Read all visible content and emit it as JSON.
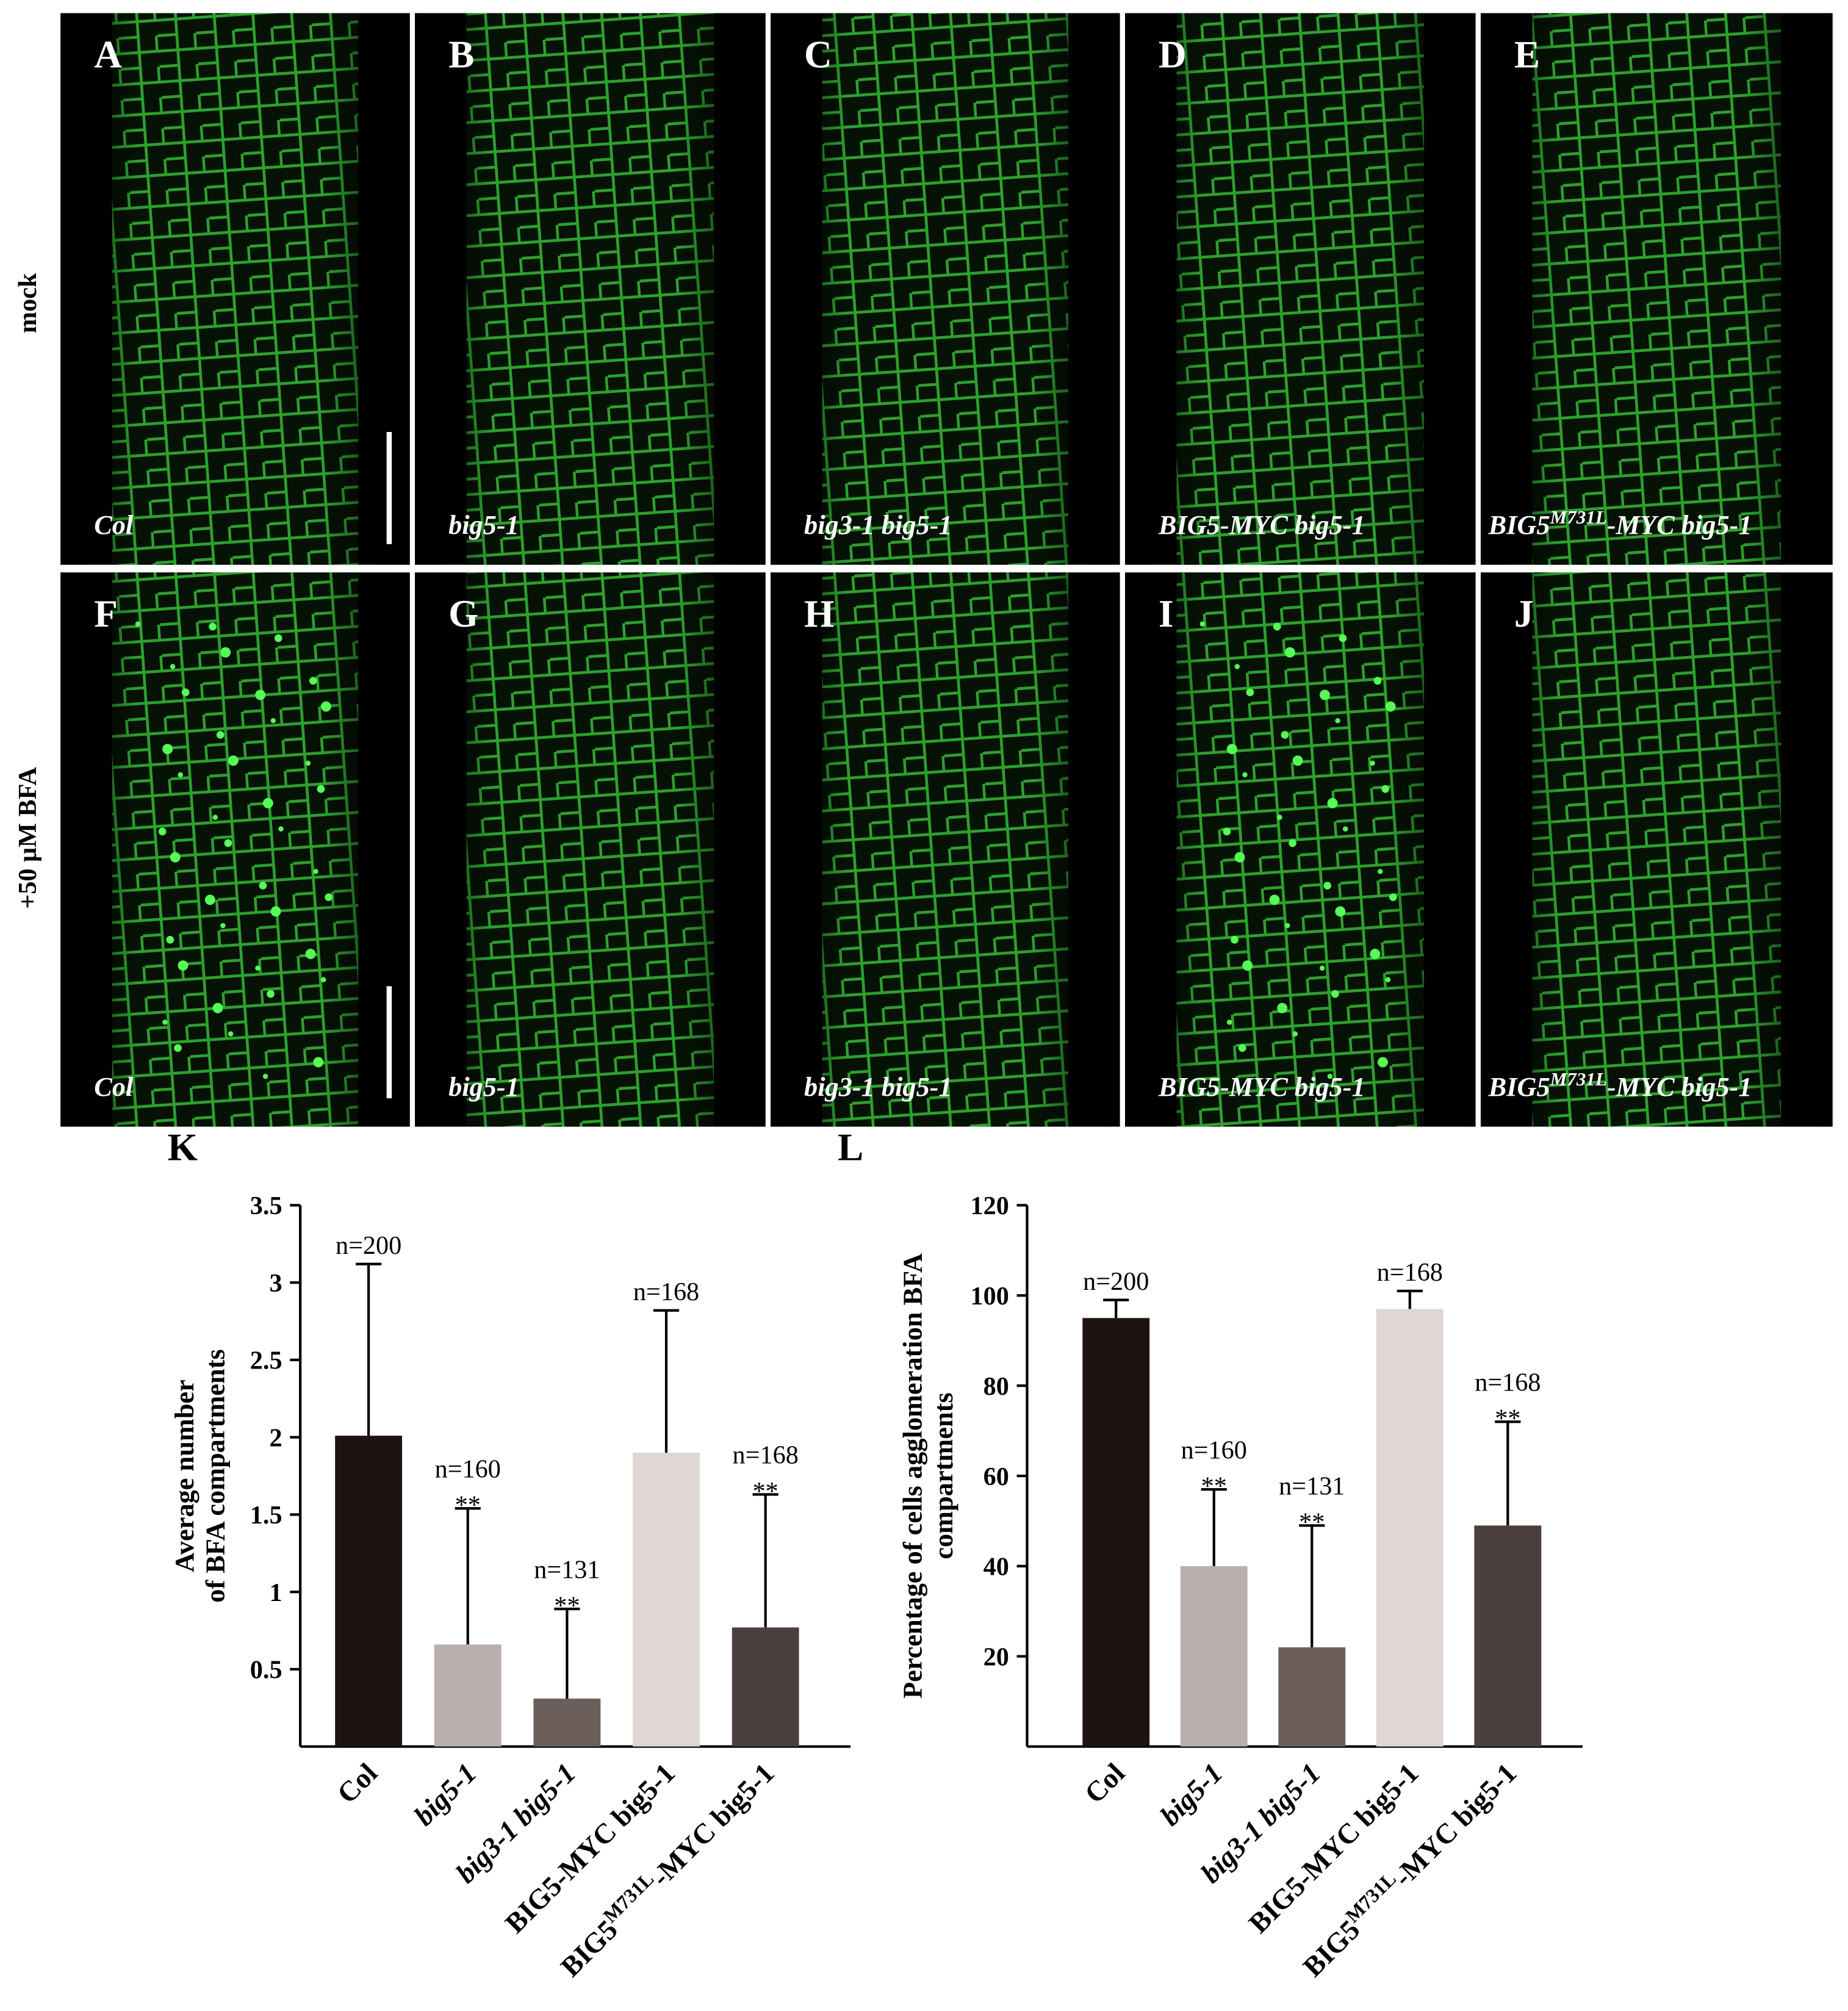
{
  "panels": {
    "row_labels": [
      "mock",
      "+50 μM BFA"
    ],
    "images": [
      {
        "letter": "A",
        "label": "Col"
      },
      {
        "letter": "B",
        "label": "big5-1"
      },
      {
        "letter": "C",
        "label": "big3-1 big5-1"
      },
      {
        "letter": "D",
        "label": "BIG5-MYC big5-1"
      },
      {
        "letter": "E",
        "label": {
          "base": "BIG5",
          "sup": "M731L",
          "rest": "-MYC big5-1"
        }
      },
      {
        "letter": "F",
        "label": "Col"
      },
      {
        "letter": "G",
        "label": "big5-1"
      },
      {
        "letter": "H",
        "label": "big3-1 big5-1"
      },
      {
        "letter": "I",
        "label": "BIG5-MYC big5-1"
      },
      {
        "letter": "J",
        "label": {
          "base": "BIG5",
          "sup": "M731L",
          "rest": "-MYC big5-1"
        }
      }
    ]
  },
  "chart_data": [
    {
      "type": "bar",
      "panel": "K",
      "ylabel": [
        "Average number",
        "of BFA compartments"
      ],
      "categories": [
        "Col",
        "big5-1",
        "big3-1 big5-1",
        "BIG5-MYC big5-1",
        {
          "base": "BIG5",
          "sup": "M731L",
          "rest": "-MYC big5-1"
        }
      ],
      "values": [
        2.01,
        0.66,
        0.31,
        1.9,
        0.77
      ],
      "errors": [
        1.11,
        0.88,
        0.58,
        0.92,
        0.86
      ],
      "colors": [
        "#1f1311",
        "#b9afac",
        "#6b5e5b",
        "#e0d6d4",
        "#4a3f3c"
      ],
      "annotations": [
        "n=200",
        "n=160",
        "n=131",
        "n=168",
        "n=168"
      ],
      "significance": [
        null,
        "**",
        "**",
        null,
        "**"
      ],
      "ylim": [
        0,
        3.5
      ],
      "yticks": [
        0.5,
        1,
        1.5,
        2,
        2.5,
        3,
        3.5
      ]
    },
    {
      "type": "bar",
      "panel": "L",
      "ylabel": [
        "Percentage of cells agglomeration BFA",
        "compartments"
      ],
      "categories": [
        "Col",
        "big5-1",
        "big3-1 big5-1",
        "BIG5-MYC big5-1",
        {
          "base": "BIG5",
          "sup": "M731L",
          "rest": "-MYC big5-1"
        }
      ],
      "values": [
        95,
        40,
        22,
        97,
        49
      ],
      "errors": [
        4,
        17,
        27,
        4,
        23
      ],
      "colors": [
        "#1f1311",
        "#b9afac",
        "#6b5e5b",
        "#e0d6d4",
        "#4a3f3c"
      ],
      "annotations": [
        "n=200",
        "n=160",
        "n=131",
        "n=168",
        "n=168"
      ],
      "significance": [
        null,
        "**",
        "**",
        null,
        "**"
      ],
      "ylim": [
        0,
        120
      ],
      "yticks": [
        20,
        40,
        60,
        80,
        100,
        120
      ]
    }
  ]
}
